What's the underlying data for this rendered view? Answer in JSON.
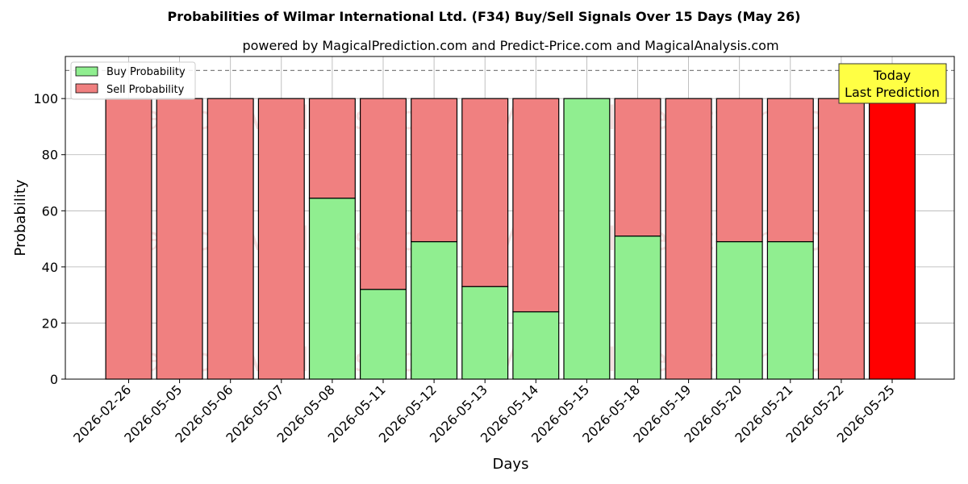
{
  "chart_data": {
    "type": "bar",
    "stacked": true,
    "title": "Probabilities of Wilmar International Ltd. (F34) Buy/Sell Signals Over 15 Days (May 26)",
    "subtitle": "powered by MagicalPrediction.com and Predict-Price.com and MagicalAnalysis.com",
    "xlabel": "Days",
    "ylabel": "Probability",
    "ylim": [
      0,
      115
    ],
    "yticks": [
      0,
      20,
      40,
      60,
      80,
      100
    ],
    "reference_line": 110,
    "grid": true,
    "legend_position": "top-left",
    "categories": [
      "2026-02-26",
      "2026-05-05",
      "2026-05-06",
      "2026-05-07",
      "2026-05-08",
      "2026-05-11",
      "2026-05-12",
      "2026-05-13",
      "2026-05-14",
      "2026-05-15",
      "2026-05-18",
      "2026-05-19",
      "2026-05-20",
      "2026-05-21",
      "2026-05-22",
      "2026-05-25"
    ],
    "series": [
      {
        "name": "Buy Probability",
        "color": "#90ee90",
        "values": [
          0,
          0,
          0,
          0,
          64.5,
          32,
          49,
          33,
          24,
          100,
          51,
          0,
          49,
          49,
          0,
          0
        ]
      },
      {
        "name": "Sell Probability",
        "color": "#f08080",
        "values": [
          100,
          100,
          100,
          100,
          35.5,
          68,
          51,
          67,
          76,
          0,
          49,
          100,
          51,
          51,
          100,
          100
        ]
      }
    ],
    "highlight": {
      "index": 15,
      "color": "#ff0000"
    },
    "annotation": {
      "lines": [
        "Today",
        "Last Prediction"
      ],
      "background": "#ffff44"
    },
    "watermark": [
      "MagicalAnalysis.com",
      "MagicalPrediction.com"
    ]
  }
}
